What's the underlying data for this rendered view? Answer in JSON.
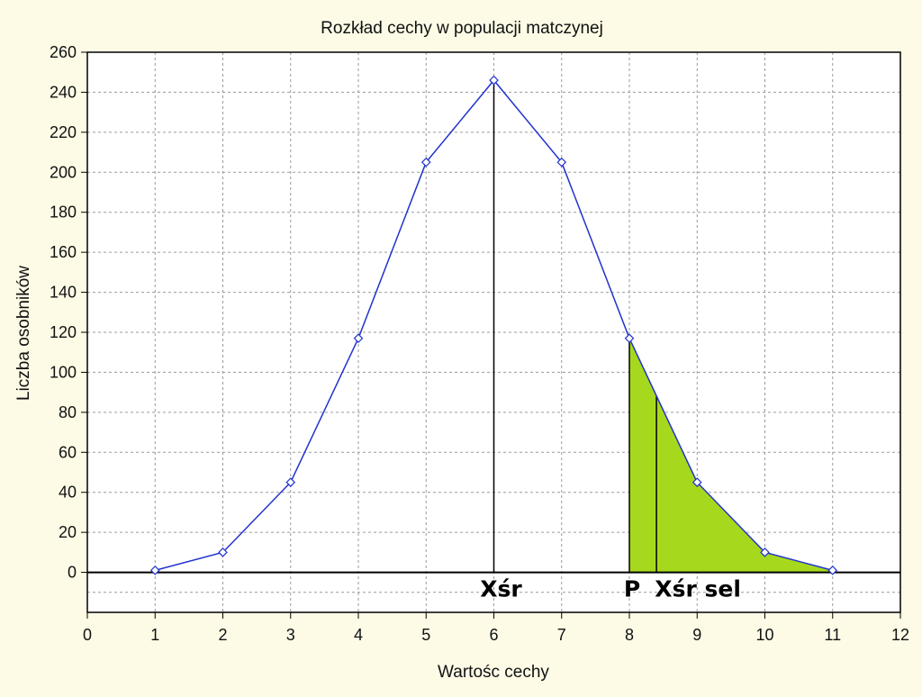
{
  "chart_data": {
    "type": "line",
    "title": "Rozkład cechy w populacji matczynej",
    "xlabel": "Wartośc cechy",
    "ylabel": "Liczba osobników",
    "xlim": [
      0,
      12
    ],
    "ylim": [
      -20,
      260
    ],
    "x_ticks": [
      0,
      1,
      2,
      3,
      4,
      5,
      6,
      7,
      8,
      9,
      10,
      11,
      12
    ],
    "y_ticks": [
      0,
      20,
      40,
      60,
      80,
      100,
      120,
      140,
      160,
      180,
      200,
      220,
      240,
      260
    ],
    "grid": true,
    "series": [
      {
        "x": [
          1,
          2,
          3,
          4,
          5,
          6,
          7,
          8,
          9,
          10,
          11
        ],
        "y": [
          1,
          10,
          45,
          117,
          205,
          246,
          205,
          117,
          45,
          10,
          1
        ],
        "color": "#2233cc",
        "marker": "diamond"
      }
    ],
    "shaded_region": {
      "x_from": 8,
      "x_to": 11,
      "color": "#a6d91e"
    },
    "vertical_markers": [
      {
        "x": 6,
        "label": "Xśr"
      },
      {
        "x": 8,
        "label": "P"
      },
      {
        "x": 8.4,
        "label": "Xśr sel"
      }
    ]
  },
  "colors": {
    "background": "#fdfbe6",
    "plot_area": "#ffffff",
    "grid": "#9a9a9a",
    "line": "#2233cc",
    "fill": "#a6d91e"
  }
}
